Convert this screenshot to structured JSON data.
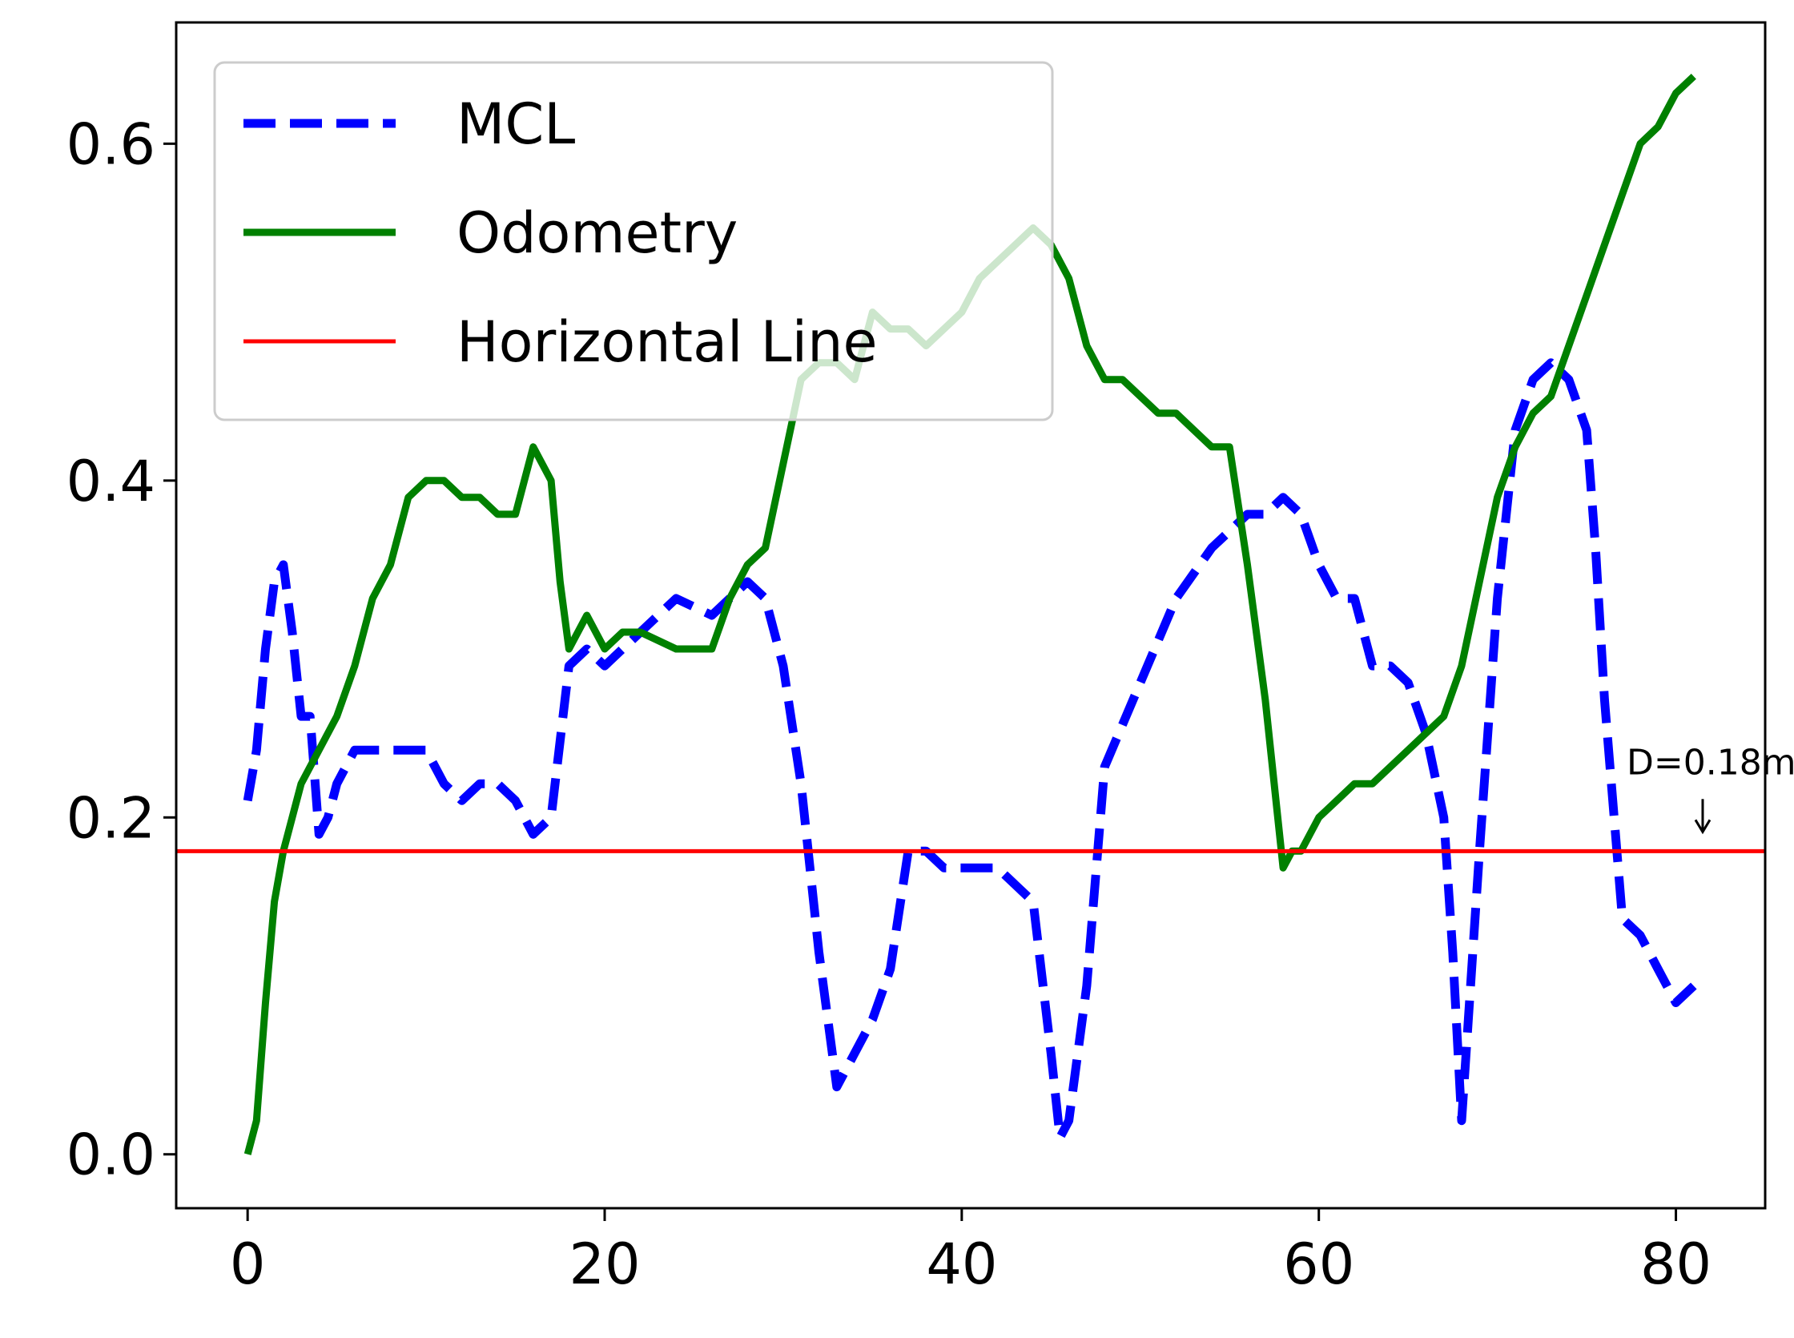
{
  "chart_data": {
    "type": "line",
    "title": "",
    "xlabel": "",
    "ylabel": "",
    "xlim": [
      -4,
      85
    ],
    "ylim": [
      -0.032,
      0.672
    ],
    "xticks": [
      0,
      20,
      40,
      60,
      80
    ],
    "yticks": [
      0.0,
      0.2,
      0.4,
      0.6
    ],
    "xtick_labels": [
      "0",
      "20",
      "40",
      "60",
      "80"
    ],
    "ytick_labels": [
      "0.0",
      "0.2",
      "0.4",
      "0.6"
    ],
    "grid": false,
    "legend": {
      "placement": "top-left",
      "entries": [
        "MCL",
        "Odometry",
        "Horizontal Line"
      ]
    },
    "series": [
      {
        "name": "MCL",
        "style": "dashed",
        "color": "#0000ff",
        "x": [
          0,
          0.5,
          1.0,
          1.5,
          2.0,
          2.5,
          3.0,
          3.5,
          4.0,
          4.5,
          5.0,
          6.0,
          7.0,
          8.0,
          9.0,
          10.0,
          11.0,
          12.0,
          13.0,
          14.0,
          15.0,
          16.0,
          17.0,
          18.0,
          19.0,
          20.0,
          22.0,
          24.0,
          26.0,
          28.0,
          29.0,
          30.0,
          31.0,
          32.0,
          33.0,
          34.0,
          35.0,
          36.0,
          37.0,
          38.0,
          39.0,
          40.0,
          42.0,
          44.0,
          45.0,
          45.5,
          46.0,
          47.0,
          48.0,
          50.0,
          52.0,
          54.0,
          55.0,
          56.0,
          57.0,
          58.0,
          59.0,
          60.0,
          61.0,
          62.0,
          63.0,
          64.0,
          65.0,
          66.0,
          67.0,
          67.5,
          68.0,
          69.0,
          70.0,
          71.0,
          72.0,
          73.0,
          74.0,
          75.0,
          75.5,
          76.0,
          77.0,
          78.0,
          79.0,
          80.0,
          81.0
        ],
        "y": [
          0.21,
          0.24,
          0.3,
          0.34,
          0.35,
          0.31,
          0.26,
          0.26,
          0.19,
          0.2,
          0.22,
          0.24,
          0.24,
          0.24,
          0.24,
          0.24,
          0.22,
          0.21,
          0.22,
          0.22,
          0.21,
          0.19,
          0.2,
          0.29,
          0.3,
          0.29,
          0.31,
          0.33,
          0.32,
          0.34,
          0.33,
          0.29,
          0.22,
          0.12,
          0.04,
          0.06,
          0.08,
          0.11,
          0.18,
          0.18,
          0.17,
          0.17,
          0.17,
          0.15,
          0.06,
          0.01,
          0.02,
          0.1,
          0.23,
          0.28,
          0.33,
          0.36,
          0.37,
          0.38,
          0.38,
          0.39,
          0.38,
          0.35,
          0.33,
          0.33,
          0.29,
          0.29,
          0.28,
          0.25,
          0.2,
          0.12,
          0.02,
          0.18,
          0.33,
          0.43,
          0.46,
          0.47,
          0.46,
          0.43,
          0.36,
          0.27,
          0.14,
          0.13,
          0.11,
          0.09,
          0.1
        ]
      },
      {
        "name": "Odometry",
        "style": "solid",
        "color": "#008000",
        "x": [
          0,
          0.5,
          1.0,
          1.5,
          2.0,
          3.0,
          4.0,
          5.0,
          6.0,
          7.0,
          8.0,
          9.0,
          10.0,
          11.0,
          12.0,
          13.0,
          14.0,
          15.0,
          16.0,
          17.0,
          17.5,
          18.0,
          19.0,
          20.0,
          21.0,
          22.0,
          24.0,
          26.0,
          27.0,
          28.0,
          29.0,
          30.0,
          31.0,
          32.0,
          33.0,
          34.0,
          35.0,
          36.0,
          37.0,
          38.0,
          39.0,
          40.0,
          41.0,
          42.0,
          43.0,
          44.0,
          45.0,
          46.0,
          47.0,
          48.0,
          49.0,
          50.0,
          51.0,
          52.0,
          53.0,
          54.0,
          55.0,
          56.0,
          57.0,
          58.0,
          58.5,
          59.0,
          60.0,
          61.0,
          62.0,
          63.0,
          64.0,
          65.0,
          66.0,
          67.0,
          68.0,
          69.0,
          70.0,
          71.0,
          72.0,
          73.0,
          74.0,
          75.0,
          76.0,
          77.0,
          78.0,
          79.0,
          80.0,
          81.0
        ],
        "y": [
          0.0,
          0.02,
          0.09,
          0.15,
          0.18,
          0.22,
          0.24,
          0.26,
          0.29,
          0.33,
          0.35,
          0.39,
          0.4,
          0.4,
          0.39,
          0.39,
          0.38,
          0.38,
          0.42,
          0.4,
          0.34,
          0.3,
          0.32,
          0.3,
          0.31,
          0.31,
          0.3,
          0.3,
          0.33,
          0.35,
          0.36,
          0.41,
          0.46,
          0.47,
          0.47,
          0.46,
          0.5,
          0.49,
          0.49,
          0.48,
          0.49,
          0.5,
          0.52,
          0.53,
          0.54,
          0.55,
          0.54,
          0.52,
          0.48,
          0.46,
          0.46,
          0.45,
          0.44,
          0.44,
          0.43,
          0.42,
          0.42,
          0.35,
          0.27,
          0.17,
          0.18,
          0.18,
          0.2,
          0.21,
          0.22,
          0.22,
          0.23,
          0.24,
          0.25,
          0.26,
          0.29,
          0.34,
          0.39,
          0.42,
          0.44,
          0.45,
          0.48,
          0.51,
          0.54,
          0.57,
          0.6,
          0.61,
          0.63,
          0.64
        ]
      },
      {
        "name": "Horizontal Line",
        "style": "solid",
        "color": "#ff0000",
        "y": 0.18
      }
    ],
    "annotations": [
      {
        "text": "D=0.18m",
        "x": 81.5,
        "y": 0.19,
        "arrow": "down"
      }
    ]
  }
}
